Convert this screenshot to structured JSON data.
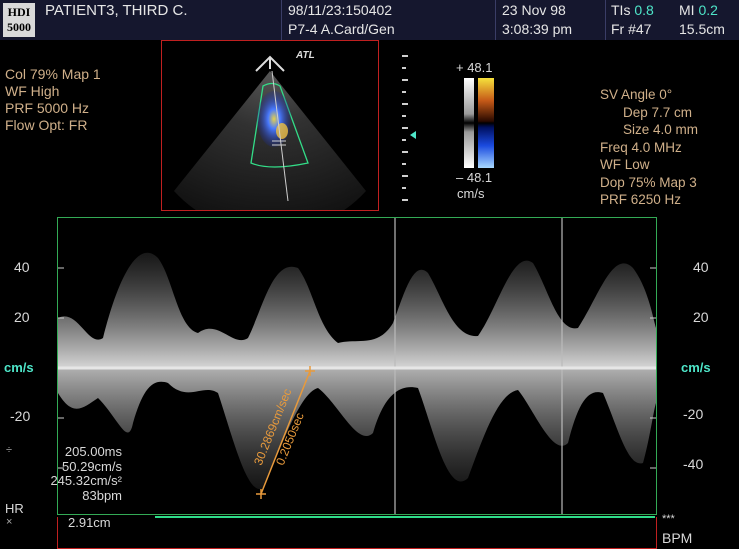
{
  "header": {
    "logo_line1": "HDI",
    "logo_line2": "5000",
    "patient_name": "PATIENT3, THIRD C.",
    "exam_id": "98/11/23:150402",
    "transducer": "P7-4 A.Card/Gen",
    "date": "23 Nov 98",
    "time": "3:08:39 pm",
    "tis_label": "TIs",
    "tis_value": "0.8",
    "mi_label": "MI",
    "mi_value": "0.2",
    "frame": "Fr #47",
    "depth": "15.5cm"
  },
  "color_params": [
    "Col 79%  Map 1",
    "WF High",
    "PRF 5000  Hz",
    "Flow Opt: FR"
  ],
  "doppler_params": [
    "SV Angle 0°",
    "Dep 7.7  cm",
    "Size 4.0  mm",
    "Freq 4.0  MHz",
    "WF Low",
    "Dop 75%  Map 3",
    "PRF 6250  Hz"
  ],
  "color_scale": {
    "max": "+ 48.1",
    "min": "– 48.1",
    "unit": "cm/s"
  },
  "image": {
    "brand": "ATL"
  },
  "spectral": {
    "unit_left": "cm/s",
    "unit_right": "cm/s",
    "left_ticks": [
      "40",
      "20",
      "-20"
    ],
    "right_ticks": [
      "40",
      "20",
      "-20",
      "-40"
    ],
    "caliper_velocity": "30.2869cm/sec",
    "caliper_time": "0.2050sec"
  },
  "measurements": {
    "values": [
      "205.00ms",
      "50.29cm/s",
      "245.32cm/s²",
      "83bpm"
    ],
    "hr_label": "HR",
    "distance": "2.91cm",
    "stars": "***",
    "bpm_label": "BPM"
  },
  "colors": {
    "header_bg": "#15172e",
    "teal": "#4ee6c9",
    "param_text": "#d0b08a",
    "sector_frame": "#c02020",
    "caliper": "#e89a3c",
    "spectral_frame": "#33aa55"
  }
}
